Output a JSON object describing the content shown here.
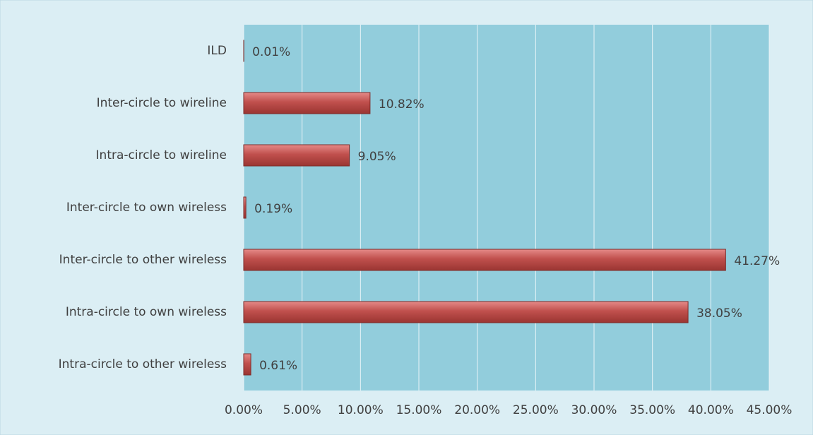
{
  "chart_data": {
    "type": "bar",
    "orientation": "horizontal",
    "categories": [
      "ILD",
      "Inter-circle to wireline",
      "Intra-circle to wireline",
      "Inter-circle to own wireless",
      "Inter-circle to other wireless",
      "Intra-circle to own wireless",
      "Intra-circle to other wireless"
    ],
    "values": [
      0.01,
      10.82,
      9.05,
      0.19,
      41.27,
      38.05,
      0.61
    ],
    "value_labels": [
      "0.01%",
      "10.82%",
      "9.05%",
      "0.19%",
      "41.27%",
      "38.05%",
      "0.61%"
    ],
    "color": "#c0504d",
    "xlim": [
      0,
      45
    ],
    "xticks": [
      {
        "value": 0,
        "label": "0.00%"
      },
      {
        "value": 5,
        "label": "5.00%"
      },
      {
        "value": 10,
        "label": "10.00%"
      },
      {
        "value": 15,
        "label": "15.00%"
      },
      {
        "value": 20,
        "label": "20.00%"
      },
      {
        "value": 25,
        "label": "25.00%"
      },
      {
        "value": 30,
        "label": "30.00%"
      },
      {
        "value": 35,
        "label": "35.00%"
      },
      {
        "value": 40,
        "label": "40.00%"
      },
      {
        "value": 45,
        "label": "45.00%"
      }
    ],
    "grid": true
  }
}
